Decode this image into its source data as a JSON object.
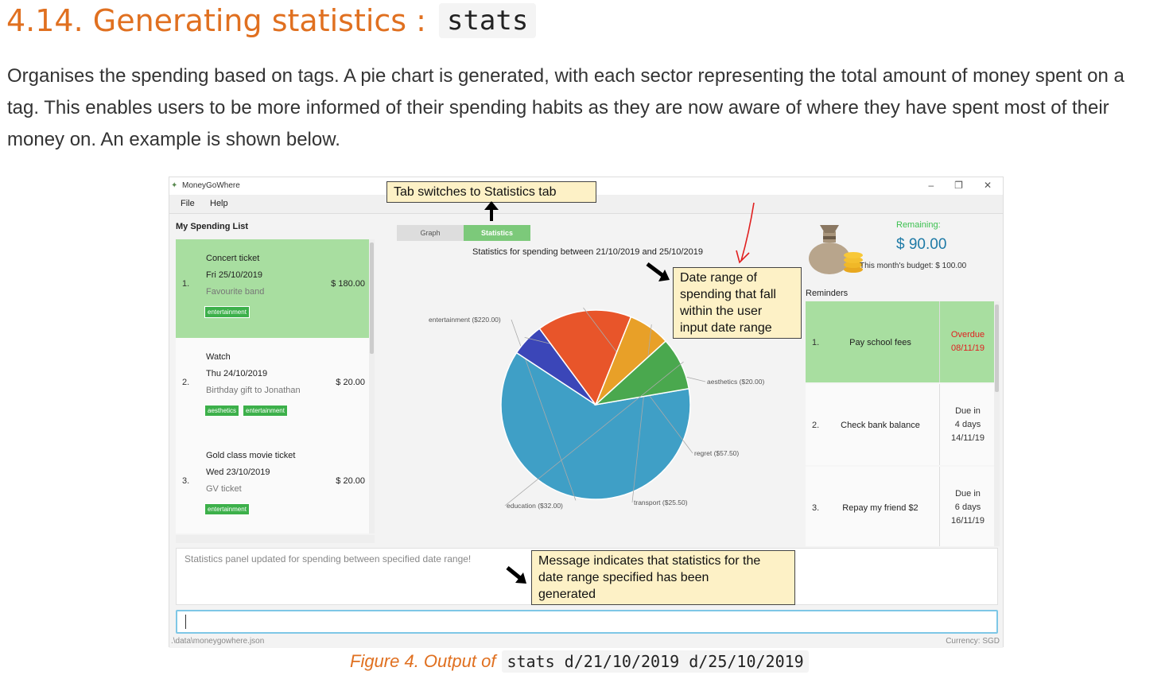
{
  "doc": {
    "section_title": "4.14. Generating statistics :",
    "section_code": "stats",
    "paragraph": "Organises the spending based on tags. A pie chart is generated, with each sector representing the total amount of money spent on a tag. This enables users to be more informed of their spending habits as they are now aware of where they have spent most of their money on. An example is shown below.",
    "caption_text": "Figure 4. Output of",
    "caption_code": "stats d/21/10/2019 d/25/10/2019"
  },
  "app": {
    "window_title": "MoneyGoWhere",
    "menu": [
      "File",
      "Help"
    ],
    "spending_list_label": "My Spending List",
    "spendings": [
      {
        "index": "1.",
        "name": "Concert ticket",
        "date": "Fri 25/10/2019",
        "remark": "Favourite band",
        "cost": "$ 180.00",
        "tags": [
          "entertainment"
        ]
      },
      {
        "index": "2.",
        "name": "Watch",
        "date": "Thu 24/10/2019",
        "remark": "Birthday gift to Jonathan",
        "cost": "$ 20.00",
        "tags": [
          "aesthetics",
          "entertainment"
        ]
      },
      {
        "index": "3.",
        "name": "Gold class movie ticket",
        "date": "Wed 23/10/2019",
        "remark": "GV ticket",
        "cost": "$ 20.00",
        "tags": [
          "entertainment"
        ]
      }
    ],
    "tabs": [
      "Graph",
      "Statistics"
    ],
    "stats_heading": "Statistics for spending between 21/10/2019 and 25/10/2019",
    "remaining_label": "Remaining:",
    "remaining_value": "$ 90.00",
    "budget_text": "This month's budget: $ 100.00",
    "reminders_label": "Reminders",
    "reminders": [
      {
        "index": "1.",
        "description": "Pay school fees",
        "due": [
          "Overdue",
          "08/11/19"
        ],
        "overdue": true
      },
      {
        "index": "2.",
        "description": "Check bank balance",
        "due": [
          "Due in",
          "4 days",
          "14/11/19"
        ],
        "overdue": false
      },
      {
        "index": "3.",
        "description": "Repay my friend $2",
        "due": [
          "Due in",
          "6 days",
          "16/11/19"
        ],
        "overdue": false
      }
    ],
    "result_message": "Statistics panel updated for spending between specified date range!",
    "command_input": "",
    "status_path": ".\\data\\moneygowhere.json",
    "status_currency": "Currency: SGD",
    "colors": {
      "accent_orange": "#e07020",
      "selected_green": "#a8dea0",
      "tag_green": "#3cb04a",
      "overdue_red": "#e02020"
    }
  },
  "callouts": {
    "tab": "Tab switches to Statistics tab",
    "date_range": [
      "Date range of",
      "spending that fall",
      "within the user",
      "input date range"
    ],
    "message": [
      "Message indicates that statistics for the",
      "date range specified has been",
      "generated"
    ]
  },
  "chart_data": {
    "type": "pie",
    "title": "Statistics for spending between 21/10/2019 and 25/10/2019",
    "slices": [
      {
        "name": "entertainment",
        "value": 220.0,
        "label": "entertainment ($220.00)",
        "color": "#3f9fc6"
      },
      {
        "name": "aesthetics",
        "value": 20.0,
        "label": "aesthetics ($20.00)",
        "color": "#3b46b8"
      },
      {
        "name": "regret",
        "value": 57.5,
        "label": "regret ($57.50)",
        "color": "#e8552a"
      },
      {
        "name": "transport",
        "value": 25.5,
        "label": "transport ($25.50)",
        "color": "#e8a028"
      },
      {
        "name": "education",
        "value": 32.0,
        "label": "education ($32.00)",
        "color": "#4aa84e"
      }
    ]
  }
}
